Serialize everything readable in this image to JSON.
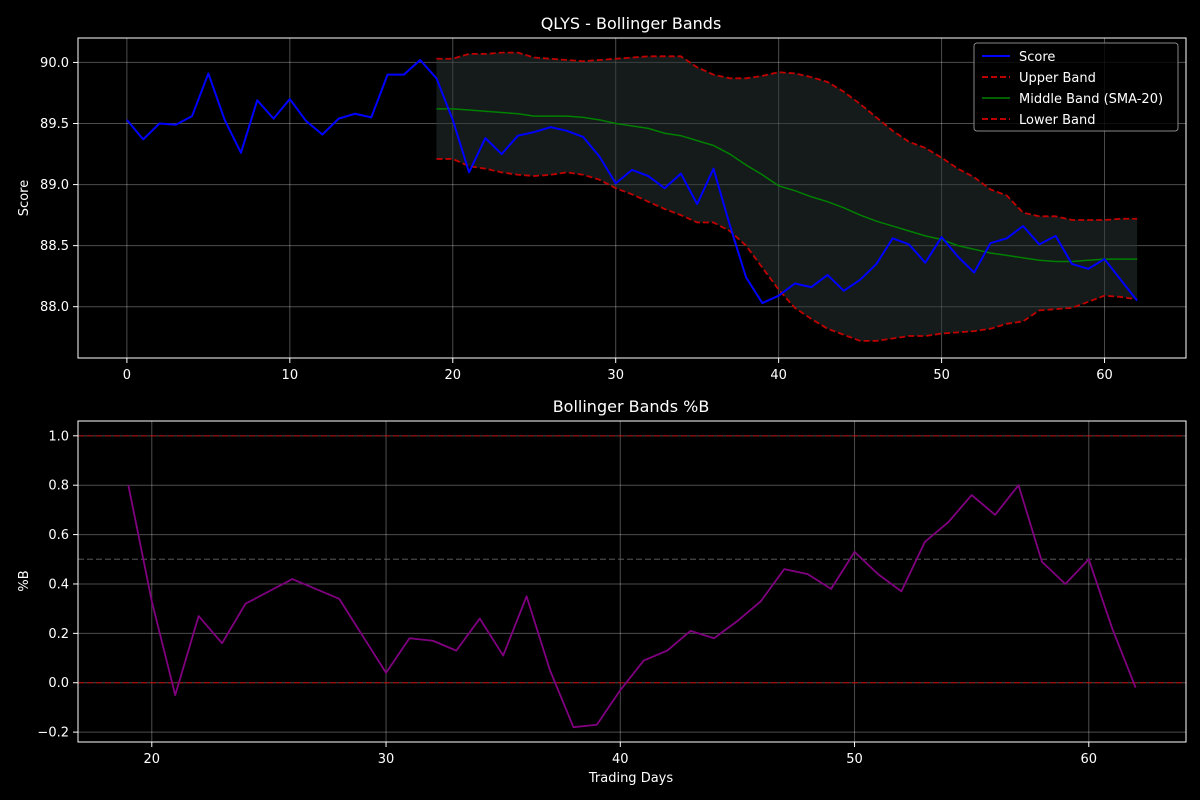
{
  "chart_data": [
    {
      "type": "line",
      "title": "QLYS - Bollinger Bands",
      "xlabel": "",
      "ylabel": "Score",
      "xlim": [
        -3,
        65
      ],
      "ylim": [
        87.58,
        90.2
      ],
      "xticks": [
        0,
        10,
        20,
        30,
        40,
        50,
        60
      ],
      "yticks": [
        88.0,
        88.5,
        89.0,
        89.5,
        90.0
      ],
      "grid": true,
      "legend_position": "top-right",
      "colors": {
        "score": "#0000ff",
        "upper": "#c00000",
        "middle": "#008000",
        "lower": "#c00000",
        "band_fill": "#2a3535"
      },
      "series": [
        {
          "name": "Score",
          "x_start": 0,
          "values": [
            89.53,
            89.37,
            89.5,
            89.49,
            89.56,
            89.91,
            89.53,
            89.26,
            89.69,
            89.54,
            89.7,
            89.52,
            89.41,
            89.54,
            89.58,
            89.55,
            89.9,
            89.9,
            90.02,
            89.87,
            89.53,
            89.1,
            89.38,
            89.25,
            89.4,
            89.43,
            89.47,
            89.44,
            89.39,
            89.23,
            89.01,
            89.12,
            89.07,
            88.97,
            89.09,
            88.84,
            89.13,
            88.67,
            88.24,
            88.03,
            88.09,
            88.19,
            88.16,
            88.26,
            88.13,
            88.22,
            88.35,
            88.56,
            88.51,
            88.36,
            88.57,
            88.41,
            88.28,
            88.52,
            88.56,
            88.66,
            88.51,
            88.58,
            88.35,
            88.31,
            88.39,
            88.22,
            88.05
          ]
        },
        {
          "name": "Upper Band",
          "x_start": 19,
          "values": [
            90.03,
            90.03,
            90.07,
            90.07,
            90.08,
            90.08,
            90.04,
            90.03,
            90.02,
            90.01,
            90.02,
            90.03,
            90.04,
            90.05,
            90.05,
            90.05,
            89.96,
            89.9,
            89.87,
            89.87,
            89.89,
            89.92,
            89.91,
            89.88,
            89.84,
            89.76,
            89.66,
            89.55,
            89.44,
            89.35,
            89.3,
            89.22,
            89.13,
            89.06,
            88.96,
            88.91,
            88.77,
            88.74,
            88.74,
            88.71,
            88.71,
            88.71,
            88.72,
            88.72
          ]
        },
        {
          "name": "Middle Band (SMA-20)",
          "x_start": 19,
          "values": [
            89.62,
            89.62,
            89.61,
            89.6,
            89.59,
            89.58,
            89.56,
            89.56,
            89.56,
            89.55,
            89.53,
            89.5,
            89.48,
            89.46,
            89.42,
            89.4,
            89.36,
            89.32,
            89.25,
            89.16,
            89.08,
            88.99,
            88.95,
            88.9,
            88.86,
            88.81,
            88.75,
            88.7,
            88.66,
            88.62,
            88.58,
            88.55,
            88.5,
            88.47,
            88.44,
            88.42,
            88.4,
            88.38,
            88.37,
            88.37,
            88.38,
            88.39,
            88.39,
            88.39
          ]
        },
        {
          "name": "Lower Band",
          "x_start": 19,
          "values": [
            89.21,
            89.21,
            89.15,
            89.13,
            89.1,
            89.08,
            89.07,
            89.08,
            89.1,
            89.08,
            89.04,
            88.97,
            88.92,
            88.86,
            88.8,
            88.75,
            88.69,
            88.69,
            88.62,
            88.5,
            88.32,
            88.14,
            87.99,
            87.9,
            87.82,
            87.77,
            87.72,
            87.72,
            87.74,
            87.76,
            87.76,
            87.78,
            87.79,
            87.8,
            87.82,
            87.86,
            87.88,
            87.97,
            87.98,
            87.99,
            88.04,
            88.09,
            88.08,
            88.06
          ]
        }
      ]
    },
    {
      "type": "line",
      "title": "Bollinger Bands %B",
      "xlabel": "Trading Days",
      "ylabel": "%B",
      "xlim": [
        16.85,
        64.15
      ],
      "ylim": [
        -0.24,
        1.06
      ],
      "xticks": [
        20,
        30,
        40,
        50,
        60
      ],
      "yticks": [
        -0.2,
        0.0,
        0.2,
        0.4,
        0.6,
        0.8,
        1.0
      ],
      "ytick_labels": [
        "−0.2",
        "0.0",
        "0.2",
        "0.4",
        "0.6",
        "0.8",
        "1.0"
      ],
      "grid": true,
      "colors": {
        "pctb": "#800080",
        "ref_high": "#c00000",
        "ref_low": "#c00000",
        "ref_mid": "#666666"
      },
      "reference_lines": [
        1.0,
        0.5,
        0.0
      ],
      "series": [
        {
          "name": "",
          "x_start": 19,
          "values": [
            0.8,
            0.33,
            -0.05,
            0.27,
            0.16,
            0.32,
            0.37,
            0.42,
            0.38,
            0.34,
            0.19,
            0.04,
            0.18,
            0.17,
            0.13,
            0.26,
            0.11,
            0.35,
            0.05,
            -0.18,
            -0.17,
            -0.03,
            0.09,
            0.13,
            0.21,
            0.18,
            0.25,
            0.33,
            0.46,
            0.44,
            0.38,
            0.53,
            0.44,
            0.37,
            0.57,
            0.65,
            0.76,
            0.68,
            0.8,
            0.49,
            0.4,
            0.5,
            0.22,
            -0.02
          ]
        }
      ]
    }
  ]
}
